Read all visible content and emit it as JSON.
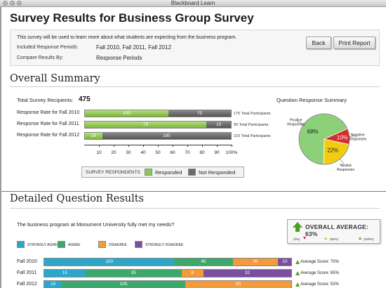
{
  "window": {
    "title": "Blackboard Learn"
  },
  "header": {
    "title": "Survey Results for Business Group Survey",
    "description": "This survey will be used to learn more about what students are expecting from the business program.",
    "included_label": "Included Response Periods:",
    "included_value": "Fall 2010, Fall 2011, Fall 2012",
    "compare_label": "Compare Results By:",
    "compare_value": "Response Periods",
    "back_label": "Back",
    "print_label": "Print Report"
  },
  "overall": {
    "title": "Overall Summary",
    "recipients_label": "Total Survey Recipients:",
    "recipients_value": "475",
    "rate_rows": [
      {
        "label": "Response Rate for Fall 2010",
        "responded": 100,
        "not_responded": 75,
        "participants": "175 Total Participants"
      },
      {
        "label": "Response Rate for Fall 2011",
        "responded": 75,
        "not_responded": 15,
        "participants": "90 Total Participants"
      },
      {
        "label": "Response Rate for Fall 2012",
        "responded": 25,
        "not_responded": 185,
        "participants": "210 Total Participants"
      }
    ],
    "axis_ticks": [
      "10",
      "20",
      "30",
      "40",
      "50",
      "60",
      "70",
      "80",
      "90",
      "100%"
    ],
    "legend_title": "SURVEY RESPONDENTS",
    "legend_responded": "Responded",
    "legend_not_responded": "Not Responded"
  },
  "pie": {
    "title": "Question Response Summary",
    "slices": [
      {
        "label": "Positive Responses",
        "percent": 68,
        "display": "68%",
        "color": "#8cd07a"
      },
      {
        "label": "Negative Responses",
        "percent": 10,
        "display": "10%",
        "color": "#d42b2b"
      },
      {
        "label": "Neutral Responses",
        "percent": 22,
        "display": "22%",
        "color": "#f2cc12"
      }
    ]
  },
  "detail": {
    "title": "Detailed Question Results",
    "question": "The business program at Monument University fully met my needs?",
    "categories": [
      {
        "name": "STRONGLY AGREE",
        "color": "#2ca7c9"
      },
      {
        "name": "AGREE",
        "color": "#3ca86c"
      },
      {
        "name": "DISAGREE",
        "color": "#f39a3a"
      },
      {
        "name": "STRONGLY DISAGREE",
        "color": "#7a4fa0"
      }
    ],
    "rows": [
      {
        "label": "Fall 2010",
        "values": [
          100,
          45,
          35,
          10
        ],
        "avg": "Average Score: 70%"
      },
      {
        "label": "Fall 2011",
        "values": [
          15,
          35,
          8,
          32
        ],
        "avg": "Average Score: 65%"
      },
      {
        "label": "Fall 2012",
        "values": [
          15,
          105,
          90,
          0
        ],
        "avg": "Average Score: 53%"
      }
    ],
    "overall_average": "OVERALL AVERAGE: 63%",
    "scale_low": "(0%)",
    "scale_mid": "(50%)",
    "scale_high": "(100%)"
  },
  "colors": {
    "responded": "#8cc854",
    "not_responded": "#6a6a6a"
  }
}
